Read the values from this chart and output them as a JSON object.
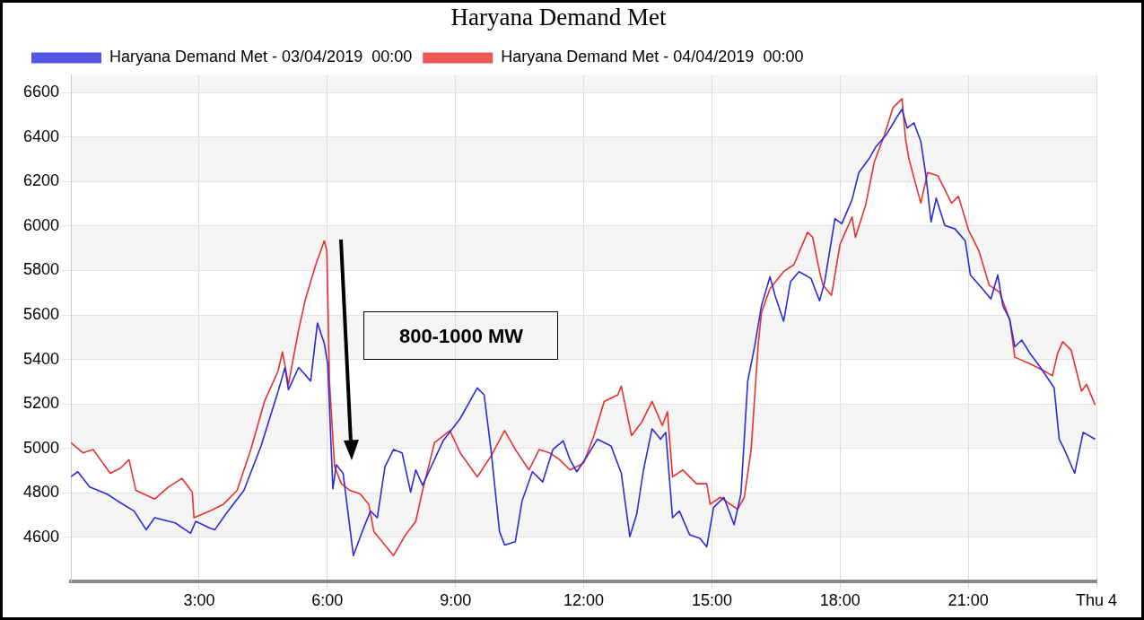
{
  "chart_data": {
    "type": "line",
    "title": "Haryana Demand Met",
    "series": [
      {
        "name": "Haryana Demand Met - 03/04/2019  00:00",
        "color": "#2b2bdd",
        "x": [
          0.0,
          0.16,
          0.44,
          0.84,
          1.08,
          1.48,
          1.76,
          1.96,
          2.44,
          2.8,
          2.92,
          3.25,
          3.37,
          3.65,
          4.05,
          4.45,
          4.85,
          5.01,
          5.09,
          5.33,
          5.61,
          5.77,
          5.93,
          6.01,
          6.13,
          6.21,
          6.37,
          6.49,
          6.61,
          6.85,
          7.01,
          7.17,
          7.35,
          7.55,
          7.75,
          7.95,
          8.07,
          8.23,
          8.71,
          9.11,
          9.51,
          9.67,
          9.83,
          10.03,
          10.15,
          10.4,
          10.56,
          10.8,
          11.04,
          11.28,
          11.52,
          11.68,
          11.84,
          12.08,
          12.32,
          12.64,
          12.88,
          13.08,
          13.24,
          13.4,
          13.6,
          13.8,
          13.92,
          14.08,
          14.24,
          14.48,
          14.72,
          14.88,
          15.04,
          15.28,
          15.52,
          15.68,
          15.84,
          16.0,
          16.16,
          16.36,
          16.48,
          16.68,
          16.84,
          17.04,
          17.32,
          17.52,
          17.64,
          17.88,
          18.04,
          18.28,
          18.44,
          18.68,
          18.84,
          19.08,
          19.32,
          19.45,
          19.57,
          19.73,
          19.89,
          20.01,
          20.13,
          20.25,
          20.45,
          20.69,
          20.93,
          21.05,
          21.33,
          21.53,
          21.69,
          21.81,
          21.97,
          22.09,
          22.25,
          22.45,
          22.69,
          23.01,
          23.13,
          23.25,
          23.49,
          23.69,
          23.97
        ],
        "values": [
          4872,
          4895,
          4826,
          4795,
          4765,
          4718,
          4634,
          4688,
          4665,
          4618,
          4672,
          4642,
          4634,
          4711,
          4811,
          5011,
          5257,
          5364,
          5264,
          5364,
          5303,
          5564,
          5472,
          5380,
          4818,
          4926,
          4888,
          4703,
          4518,
          4642,
          4718,
          4688,
          4918,
          4995,
          4980,
          4803,
          4903,
          4834,
          5034,
          5134,
          5272,
          5241,
          4995,
          4626,
          4565,
          4580,
          4765,
          4895,
          4849,
          4995,
          5034,
          4949,
          4895,
          4965,
          5041,
          5011,
          4888,
          4603,
          4703,
          4903,
          5088,
          5041,
          5072,
          4688,
          4718,
          4611,
          4595,
          4557,
          4734,
          4780,
          4657,
          4795,
          5303,
          5457,
          5641,
          5772,
          5687,
          5572,
          5749,
          5795,
          5764,
          5664,
          5749,
          6033,
          6010,
          6118,
          6241,
          6303,
          6357,
          6410,
          6487,
          6526,
          6441,
          6464,
          6380,
          6226,
          6018,
          6126,
          6003,
          5987,
          5933,
          5780,
          5718,
          5672,
          5780,
          5641,
          5580,
          5457,
          5487,
          5426,
          5364,
          5272,
          5041,
          4995,
          4888,
          5072,
          5041
        ]
      },
      {
        "name": "Haryana Demand Met - 04/04/2019  00:00",
        "color": "#e8302e",
        "x": [
          0.0,
          0.28,
          0.52,
          0.92,
          1.16,
          1.36,
          1.52,
          1.96,
          2.28,
          2.6,
          2.84,
          2.88,
          3.25,
          3.57,
          3.89,
          4.21,
          4.53,
          4.85,
          4.95,
          5.09,
          5.33,
          5.49,
          5.73,
          5.93,
          5.99,
          6.05,
          6.17,
          6.33,
          6.53,
          6.77,
          6.97,
          7.09,
          7.25,
          7.55,
          7.83,
          8.07,
          8.23,
          8.51,
          8.87,
          9.11,
          9.51,
          9.83,
          10.15,
          10.4,
          10.72,
          10.96,
          11.2,
          11.44,
          11.68,
          12.0,
          12.24,
          12.48,
          12.8,
          12.88,
          13.12,
          13.36,
          13.6,
          13.84,
          13.96,
          14.08,
          14.32,
          14.64,
          14.88,
          14.96,
          15.2,
          15.6,
          15.76,
          15.92,
          16.08,
          16.16,
          16.36,
          16.68,
          16.92,
          17.24,
          17.36,
          17.52,
          17.6,
          17.8,
          18.0,
          18.28,
          18.36,
          18.6,
          18.8,
          19.04,
          19.24,
          19.45,
          19.53,
          19.61,
          19.89,
          20.05,
          20.29,
          20.61,
          20.77,
          21.01,
          21.25,
          21.49,
          21.73,
          21.97,
          22.09,
          22.45,
          22.77,
          22.97,
          23.09,
          23.21,
          23.41,
          23.65,
          23.77,
          23.97
        ],
        "values": [
          5026,
          4980,
          4995,
          4888,
          4911,
          4949,
          4811,
          4772,
          4826,
          4865,
          4803,
          4688,
          4718,
          4749,
          4811,
          4995,
          5211,
          5349,
          5434,
          5288,
          5534,
          5672,
          5826,
          5934,
          5888,
          5303,
          4918,
          4841,
          4811,
          4795,
          4749,
          4626,
          4588,
          4518,
          4611,
          4672,
          4811,
          5026,
          5080,
          4980,
          4872,
          4965,
          5080,
          4995,
          4903,
          4995,
          4980,
          4949,
          4903,
          4934,
          5057,
          5211,
          5241,
          5280,
          5057,
          5118,
          5211,
          5103,
          5165,
          4872,
          4903,
          4841,
          4841,
          4749,
          4780,
          4726,
          4780,
          4995,
          5457,
          5610,
          5718,
          5795,
          5826,
          5972,
          5949,
          5795,
          5734,
          5688,
          5918,
          6041,
          5949,
          6095,
          6287,
          6410,
          6533,
          6572,
          6395,
          6303,
          6103,
          6241,
          6226,
          6103,
          6134,
          5980,
          5888,
          5734,
          5703,
          5580,
          5410,
          5380,
          5349,
          5326,
          5426,
          5480,
          5441,
          5257,
          5288,
          5195
        ]
      }
    ],
    "xlim": [
      0,
      24
    ],
    "xticks": [
      {
        "value": 3,
        "label": "3:00"
      },
      {
        "value": 6,
        "label": "6:00"
      },
      {
        "value": 9,
        "label": "9:00"
      },
      {
        "value": 12,
        "label": "12:00"
      },
      {
        "value": 15,
        "label": "15:00"
      },
      {
        "value": 18,
        "label": "18:00"
      },
      {
        "value": 21,
        "label": "21:00"
      },
      {
        "value": 24,
        "label": "Thu 4"
      }
    ],
    "ylim": [
      4400,
      6680
    ],
    "yticks": [
      4600,
      4800,
      5000,
      5200,
      5400,
      5600,
      5800,
      6000,
      6200,
      6400,
      6600
    ],
    "grid": true,
    "legend": "top left",
    "marker": "none",
    "line_style": "solid",
    "annotations": [
      "800-1000 MW"
    ]
  }
}
